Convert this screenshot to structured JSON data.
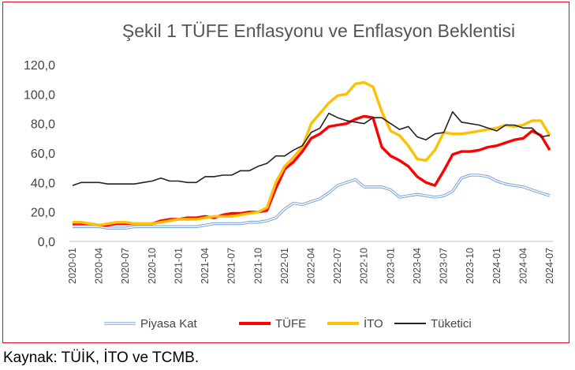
{
  "source_note": "Kaynak: TÜİK, İTO ve TCMB.",
  "chart_data": {
    "type": "line",
    "title": "Şekil 1 TÜFE Enflasyonu ve Enflasyon Beklentisi",
    "xlabel": "",
    "ylabel": "",
    "ylim": [
      0,
      120
    ],
    "yticks": [
      "0,0",
      "20,0",
      "40,0",
      "60,0",
      "80,0",
      "100,0",
      "120,0"
    ],
    "grid": false,
    "legend": "bottom",
    "x": [
      "2020-01",
      "2020-02",
      "2020-03",
      "2020-04",
      "2020-05",
      "2020-06",
      "2020-07",
      "2020-08",
      "2020-09",
      "2020-10",
      "2020-11",
      "2020-12",
      "2021-01",
      "2021-02",
      "2021-03",
      "2021-04",
      "2021-05",
      "2021-06",
      "2021-07",
      "2021-08",
      "2021-09",
      "2021-10",
      "2021-11",
      "2021-12",
      "2022-01",
      "2022-02",
      "2022-03",
      "2022-04",
      "2022-05",
      "2022-06",
      "2022-07",
      "2022-08",
      "2022-09",
      "2022-10",
      "2022-11",
      "2022-12",
      "2023-01",
      "2023-02",
      "2023-03",
      "2023-04",
      "2023-05",
      "2023-06",
      "2023-07",
      "2023-08",
      "2023-09",
      "2023-10",
      "2023-11",
      "2023-12",
      "2024-01",
      "2024-02",
      "2024-03",
      "2024-04",
      "2024-05",
      "2024-06",
      "2024-07"
    ],
    "xtick_labels": [
      "2020-01",
      "2020-04",
      "2020-07",
      "2020-10",
      "2021-01",
      "2021-04",
      "2021-07",
      "2021-10",
      "2022-01",
      "2022-04",
      "2022-07",
      "2022-10",
      "2023-01",
      "2023-04",
      "2023-07",
      "2023-10",
      "2024-01",
      "2024-04",
      "2024-07"
    ],
    "series": [
      {
        "name": "Piyasa Kat",
        "color": "#7fa8d8",
        "style": "double",
        "values": [
          10,
          10,
          10,
          10,
          9,
          9,
          9,
          10,
          10,
          10,
          10,
          10,
          10,
          10,
          10,
          11,
          12,
          12,
          12,
          12,
          13,
          13,
          14,
          16,
          22,
          26,
          25,
          27,
          29,
          33,
          38,
          40,
          42,
          37,
          37,
          37,
          35,
          30,
          31,
          32,
          31,
          30,
          31,
          34,
          43,
          45,
          45,
          44,
          41,
          39,
          38,
          37,
          35,
          33,
          31
        ]
      },
      {
        "name": "TÜFE",
        "color": "#ff0000",
        "style": "solid",
        "values": [
          12,
          12,
          12,
          11,
          11,
          12,
          12,
          12,
          12,
          12,
          14,
          15,
          15,
          16,
          16,
          17,
          16,
          18,
          19,
          19,
          20,
          20,
          21,
          36,
          49,
          54,
          61,
          70,
          73,
          78,
          79,
          80,
          83,
          85,
          84,
          64,
          58,
          55,
          51,
          44,
          40,
          38,
          48,
          59,
          61,
          61,
          62,
          64,
          65,
          67,
          69,
          70,
          75,
          72,
          62
        ]
      },
      {
        "name": "İTO",
        "color": "#ffc000",
        "style": "solid",
        "values": [
          13,
          13,
          12,
          11,
          12,
          13,
          13,
          12,
          12,
          12,
          13,
          14,
          15,
          15,
          15,
          16,
          17,
          17,
          17,
          18,
          19,
          20,
          23,
          40,
          51,
          57,
          64,
          80,
          87,
          94,
          99,
          100,
          107,
          108,
          105,
          88,
          75,
          72,
          65,
          56,
          55,
          62,
          74,
          73,
          73,
          74,
          75,
          76,
          77,
          79,
          78,
          79,
          82,
          82,
          72
        ]
      },
      {
        "name": "Tüketici",
        "color": "#222222",
        "style": "solid",
        "values": [
          38,
          40,
          40,
          40,
          39,
          39,
          39,
          39,
          40,
          41,
          43,
          41,
          41,
          40,
          40,
          44,
          44,
          45,
          45,
          48,
          48,
          51,
          53,
          58,
          58,
          62,
          65,
          74,
          77,
          87,
          84,
          82,
          81,
          80,
          84,
          84,
          80,
          76,
          78,
          71,
          69,
          73,
          74,
          88,
          81,
          80,
          79,
          77,
          75,
          79,
          79,
          77,
          77,
          71,
          72
        ]
      }
    ]
  }
}
